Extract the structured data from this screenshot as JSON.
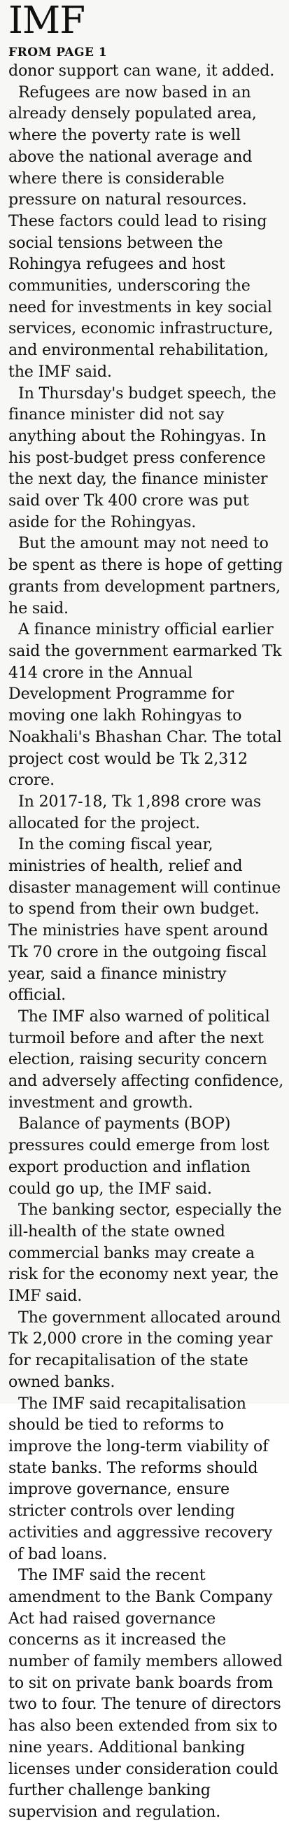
{
  "headline": "IMF",
  "jump_line": "FROM PAGE 1",
  "paragraphs": [
    "donor support can wane, it added.",
    "Refugees are now based in an already densely populated area, where the poverty rate is well above the national average and where there is considerable pressure on natural resources. These factors could lead to rising social tensions between the Rohingya refugees and host communities, underscoring the need for investments in key social services, economic infrastructure, and environmental rehabilitation, the IMF said.",
    "In Thursday's budget speech, the finance minister did not say anything about the Rohingyas. In his post-budget press conference the next day, the finance minister said over Tk 400 crore was put aside for the Rohingyas.",
    "But the amount may not need to be spent as there is hope of getting grants from development partners, he said.",
    "A finance ministry official earlier said the government earmarked Tk 414 crore in the Annual Development Programme for moving one lakh Rohingyas to Noakhali's Bhashan Char. The total project cost would be Tk 2,312 crore.",
    "In 2017-18, Tk 1,898 crore was allocated for the project.",
    "In the coming fiscal year, ministries of health, relief and disaster management will continue to spend from their own budget. The ministries have spent around Tk 70 crore in the outgoing fiscal year, said a finance ministry official.",
    "The IMF also warned of political turmoil before and after the next election, raising security concern and adversely affecting confidence, investment and growth.",
    "Balance of payments (BOP) pressures could emerge from lost export production and inflation could go up, the IMF said.",
    "The banking sector, especially the ill-health of the state owned commercial banks may create a risk for the economy next year, the IMF said.",
    "The government allocated around Tk 2,000 crore in the coming year for recapitalisation of the state owned banks.",
    "The IMF said recapitalisation should be tied to reforms to improve the long-term viability of state banks. The reforms should improve governance, ensure stricter controls over lending activities and aggressive recovery of bad loans.",
    "The IMF said the recent amendment to the Bank Company Act had raised governance concerns as it increased the number of family members allowed to sit on private bank boards from two to four. The tenure of directors has also been extended from six to nine years. Additional banking licenses under consideration could further challenge banking supervision and regulation."
  ]
}
